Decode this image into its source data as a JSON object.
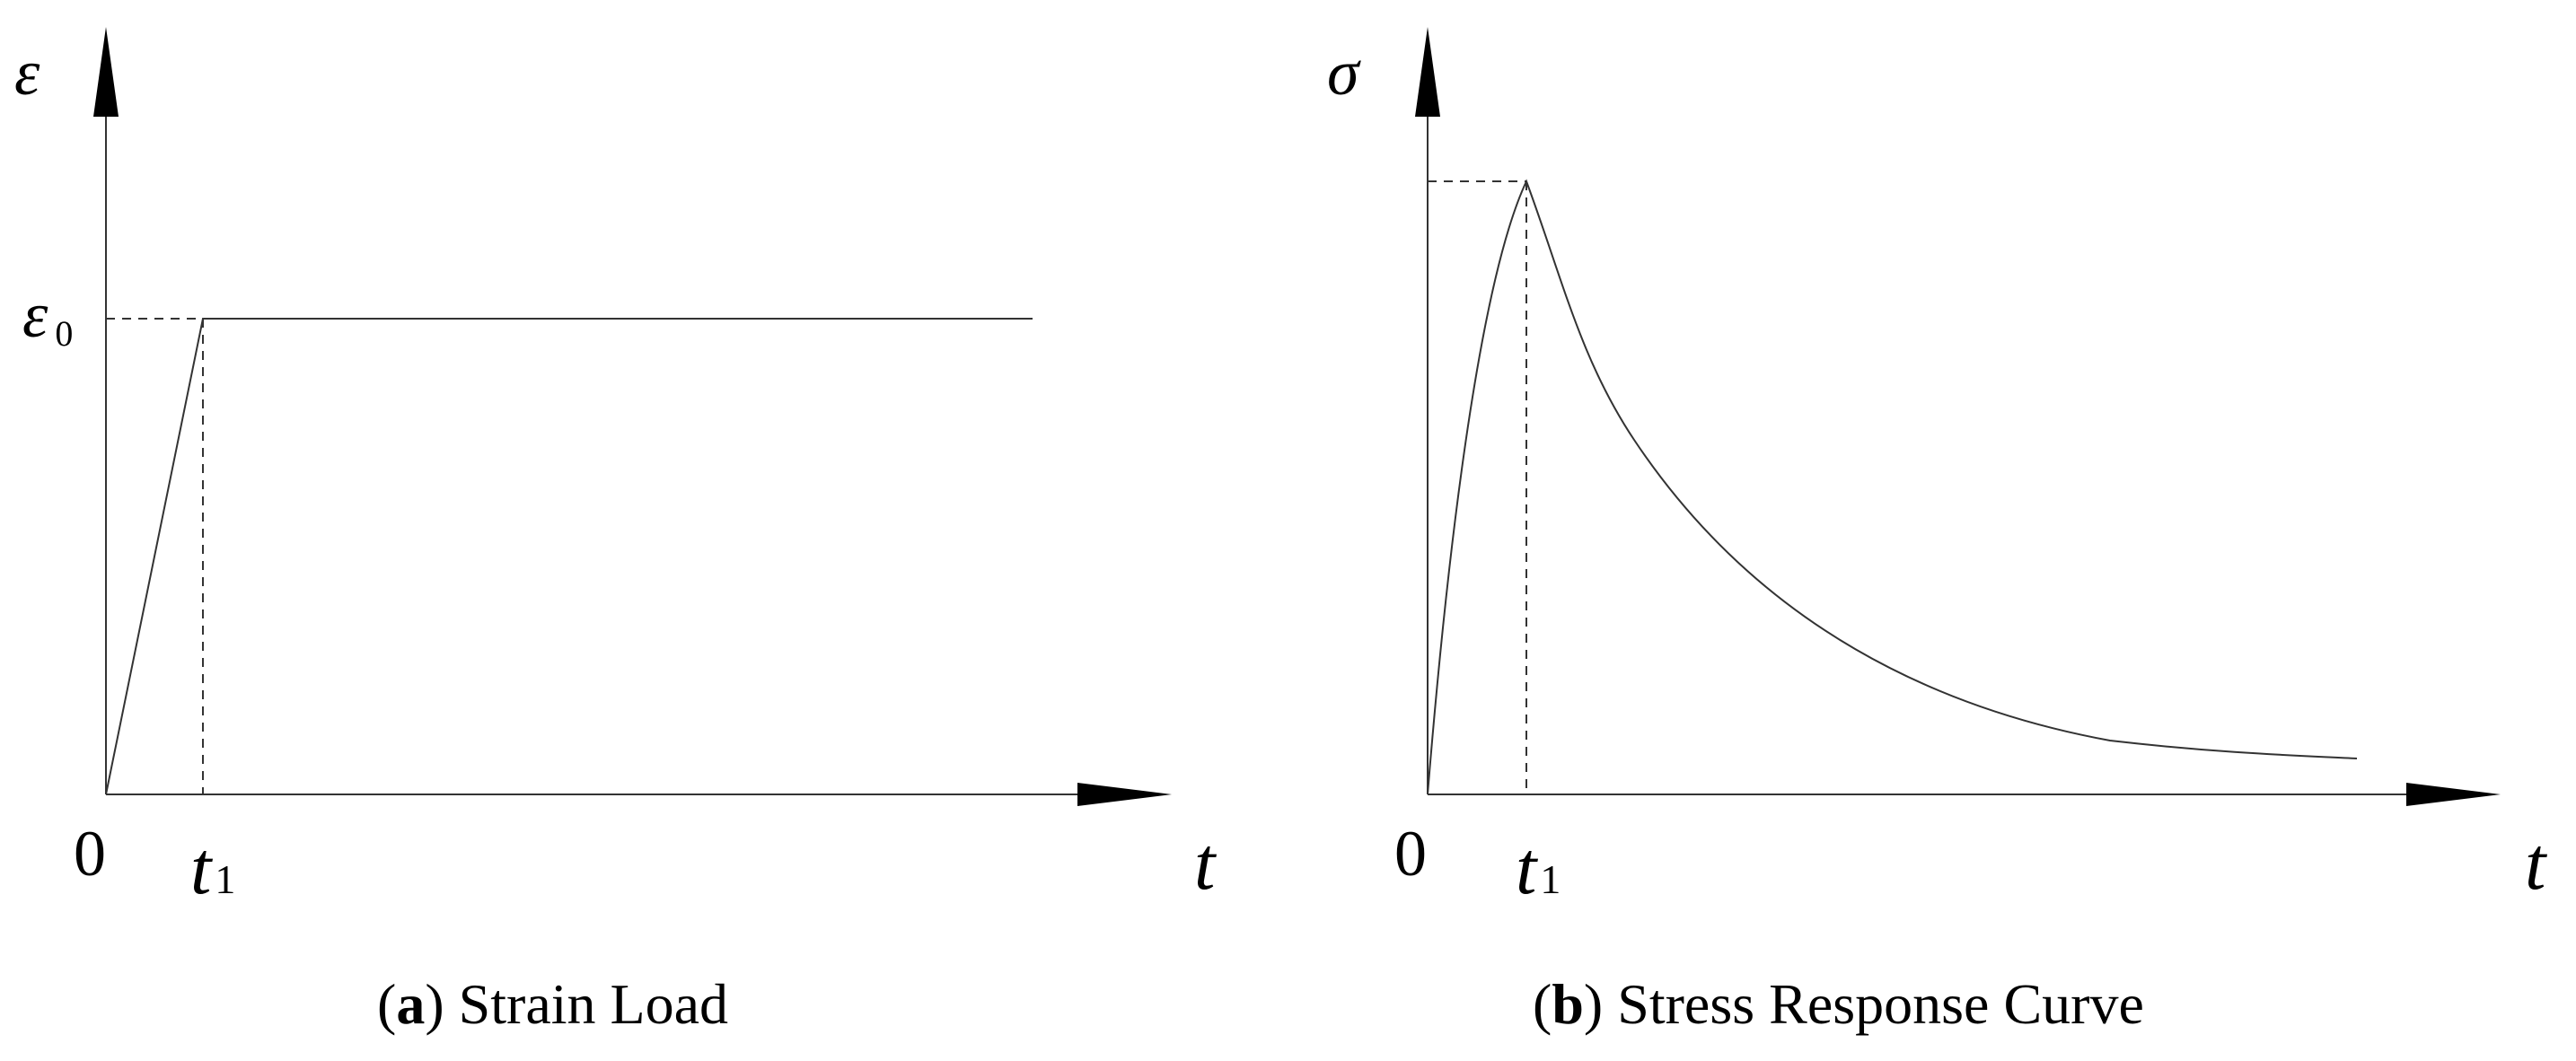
{
  "panel_a": {
    "y_axis_symbol": "ε",
    "y_level_symbol": "ε",
    "y_level_subscript": "0",
    "origin_label": "0",
    "t1_symbol": "t",
    "t1_subscript": "1",
    "x_axis_symbol": "t",
    "caption_letter": "a",
    "caption_text": "Strain Load"
  },
  "panel_b": {
    "y_axis_symbol": "σ",
    "origin_label": "0",
    "t1_symbol": "t",
    "t1_subscript": "1",
    "x_axis_symbol": "t",
    "caption_letter": "b",
    "caption_text": "Stress Response Curve"
  }
}
